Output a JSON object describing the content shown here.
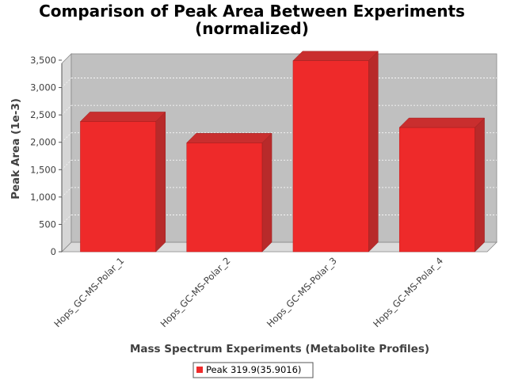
{
  "chart_data": {
    "type": "bar",
    "title": "Comparison of Peak Area Between Experiments",
    "subtitle": "(normalized)",
    "xlabel": "Mass Spectrum Experiments (Metabolite Profiles)",
    "ylabel": "Peak Area (1e-3)",
    "categories": [
      "Hops_GC-MS-Polar_1",
      "Hops_GC-MS-Polar_2",
      "Hops_GC-MS-Polar_3",
      "Hops_GC-MS-Polar_4"
    ],
    "series": [
      {
        "name": "Peak 319.9(35.9016)",
        "values": [
          2380,
          1990,
          3490,
          2270
        ],
        "color": "#ee2a2a"
      }
    ],
    "ylim": [
      0,
      3500
    ],
    "yticks": [
      0,
      500,
      1000,
      1500,
      2000,
      2500,
      3000,
      3500
    ],
    "ytick_labels": [
      "0",
      "500",
      "1,000",
      "1,500",
      "2,000",
      "2,500",
      "3,000",
      "3,500"
    ],
    "grid": true,
    "style": "3d",
    "legend_position": "bottom"
  }
}
